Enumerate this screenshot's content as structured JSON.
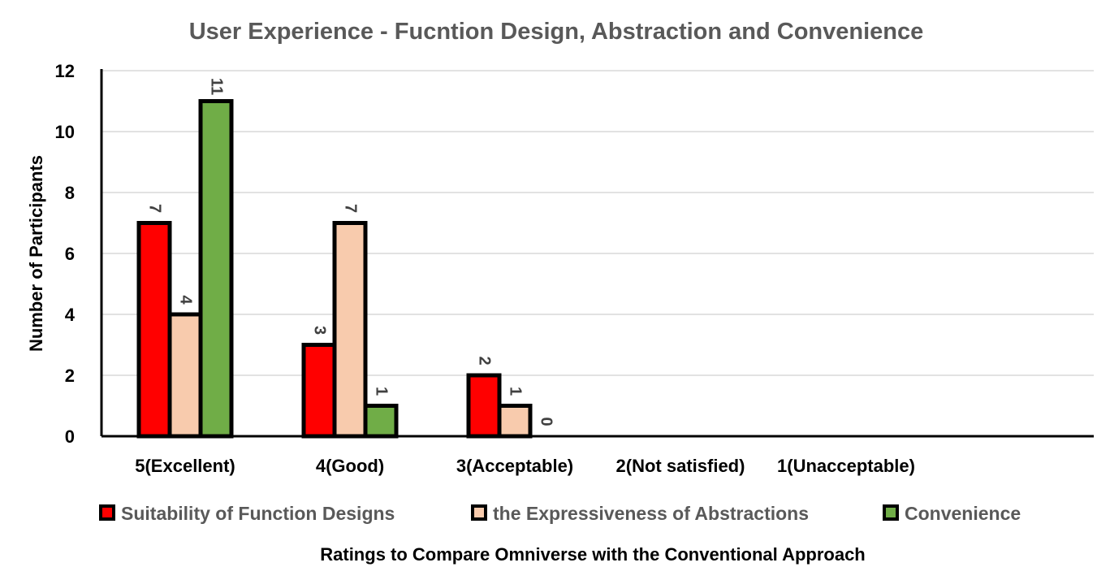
{
  "chart_data": {
    "type": "bar",
    "title": "User Experience - Fucntion Design, Abstraction and Convenience",
    "xlabel": "Ratings to Compare Omniverse with the Conventional Approach",
    "ylabel": "Number of Participants",
    "categories": [
      "5(Excellent)",
      "4(Good)",
      "3(Acceptable)",
      "2(Not satisfied)",
      "1(Unacceptable)"
    ],
    "ylim": [
      0,
      12
    ],
    "yticks": [
      0,
      2,
      4,
      6,
      8,
      10,
      12
    ],
    "grid": true,
    "legend_position": "bottom",
    "series": [
      {
        "name": "Suitability of Function Designs",
        "color": "#ff0000",
        "values": [
          7,
          3,
          2,
          null,
          null
        ],
        "labels": [
          "7",
          "3",
          "2",
          "",
          ""
        ]
      },
      {
        "name": "the Expressiveness of Abstractions",
        "color": "#f8cbad",
        "values": [
          4,
          7,
          1,
          null,
          null
        ],
        "labels": [
          "4",
          "7",
          "1",
          "",
          ""
        ]
      },
      {
        "name": "Convenience",
        "color": "#70ad47",
        "values": [
          11,
          1,
          0,
          null,
          null
        ],
        "labels": [
          "11",
          "1",
          "0",
          "",
          ""
        ]
      }
    ]
  }
}
